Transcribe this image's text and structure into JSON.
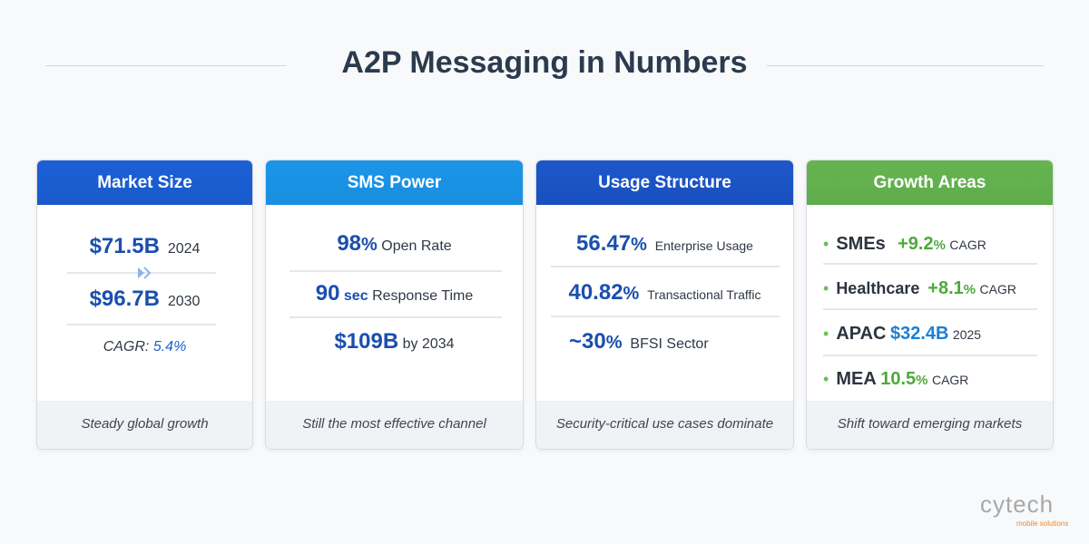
{
  "title": "A2P Messaging in Numbers",
  "colors": {
    "blue_dark": "#1a5fd3",
    "blue_light": "#1b93e6",
    "blue_mid": "#1d55c7",
    "green": "#62b04d",
    "value_blue": "#1a4fae",
    "value_green": "#4caa3c"
  },
  "cards": [
    {
      "title": "Market Size",
      "rows": [
        {
          "value": "$71.5B",
          "label": "2024"
        },
        {
          "value": "$96.7B",
          "label": "2030"
        },
        {
          "label": "CAGR:",
          "value": "5.4%"
        }
      ],
      "footer": "Steady global growth"
    },
    {
      "title": "SMS Power",
      "rows": [
        {
          "value": "98",
          "unit": "%",
          "label": "Open Rate"
        },
        {
          "value": "90",
          "unit": "sec",
          "label": "Response Time"
        },
        {
          "value": "$109B",
          "label": "by 2034"
        }
      ],
      "footer": "Still the most effective channel"
    },
    {
      "title": "Usage Structure",
      "rows": [
        {
          "value": "56.47",
          "unit": "%",
          "label": "Enterprise Usage"
        },
        {
          "value": "40.82",
          "unit": "%",
          "label": "Transactional Traffic"
        },
        {
          "value": "~30",
          "unit": "%",
          "label": "BFSI Sector"
        }
      ],
      "footer": "Security-critical use cases dominate"
    },
    {
      "title": "Growth Areas",
      "rows": [
        {
          "name": "SMEs",
          "value": "+9.2",
          "unit": "%",
          "label": "CAGR"
        },
        {
          "name": "Healthcare",
          "value": "+8.1",
          "unit": "%",
          "label": "CAGR"
        },
        {
          "name": "APAC",
          "value": "$32.4B",
          "label": "2025"
        },
        {
          "name": "MEA",
          "value": "10.5",
          "unit": "%",
          "label": "CAGR"
        }
      ],
      "footer": "Shift toward emerging markets"
    }
  ],
  "logo": {
    "text": "cytech",
    "tagline": "mobile solutions"
  }
}
